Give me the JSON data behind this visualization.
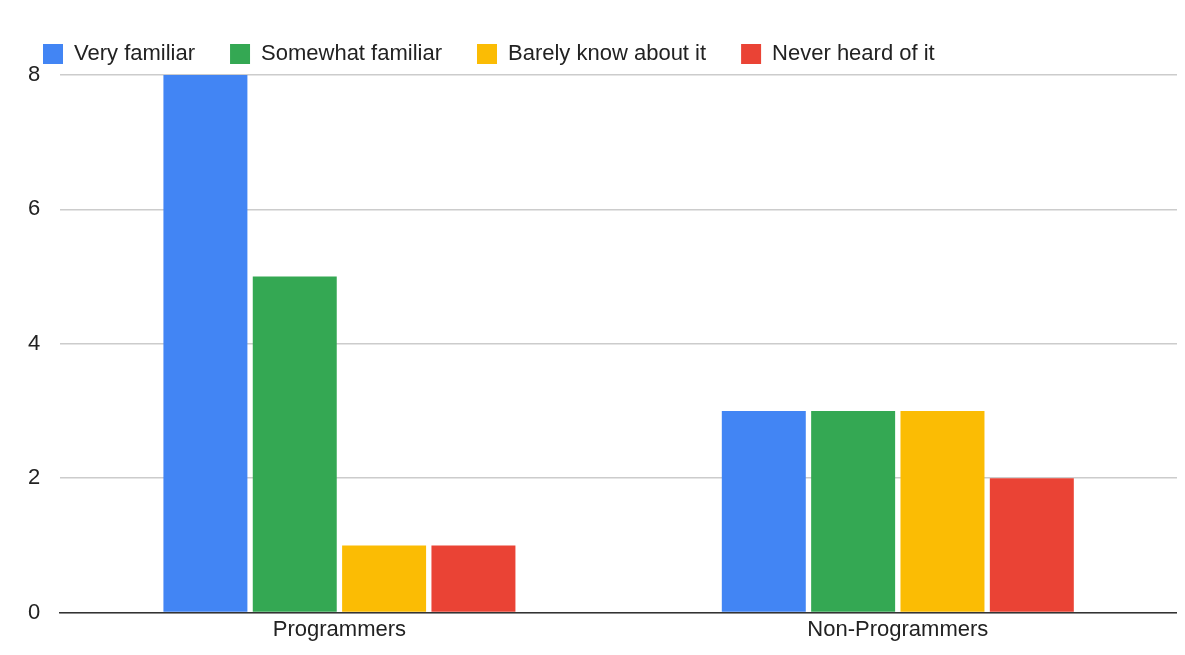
{
  "chart_data": {
    "type": "bar",
    "categories": [
      "Programmers",
      "Non-Programmers"
    ],
    "series": [
      {
        "name": "Very familiar",
        "color": "#4285f4",
        "values": [
          8,
          3
        ]
      },
      {
        "name": "Somewhat familiar",
        "color": "#34a853",
        "values": [
          5,
          3
        ]
      },
      {
        "name": "Barely know about it",
        "color": "#fbbc04",
        "values": [
          1,
          3
        ]
      },
      {
        "name": "Never heard of it",
        "color": "#ea4335",
        "values": [
          1,
          2
        ]
      }
    ],
    "ylim": [
      0,
      8
    ],
    "yticks": [
      0,
      2,
      4,
      6,
      8
    ],
    "grid": "y",
    "legend": "top"
  }
}
